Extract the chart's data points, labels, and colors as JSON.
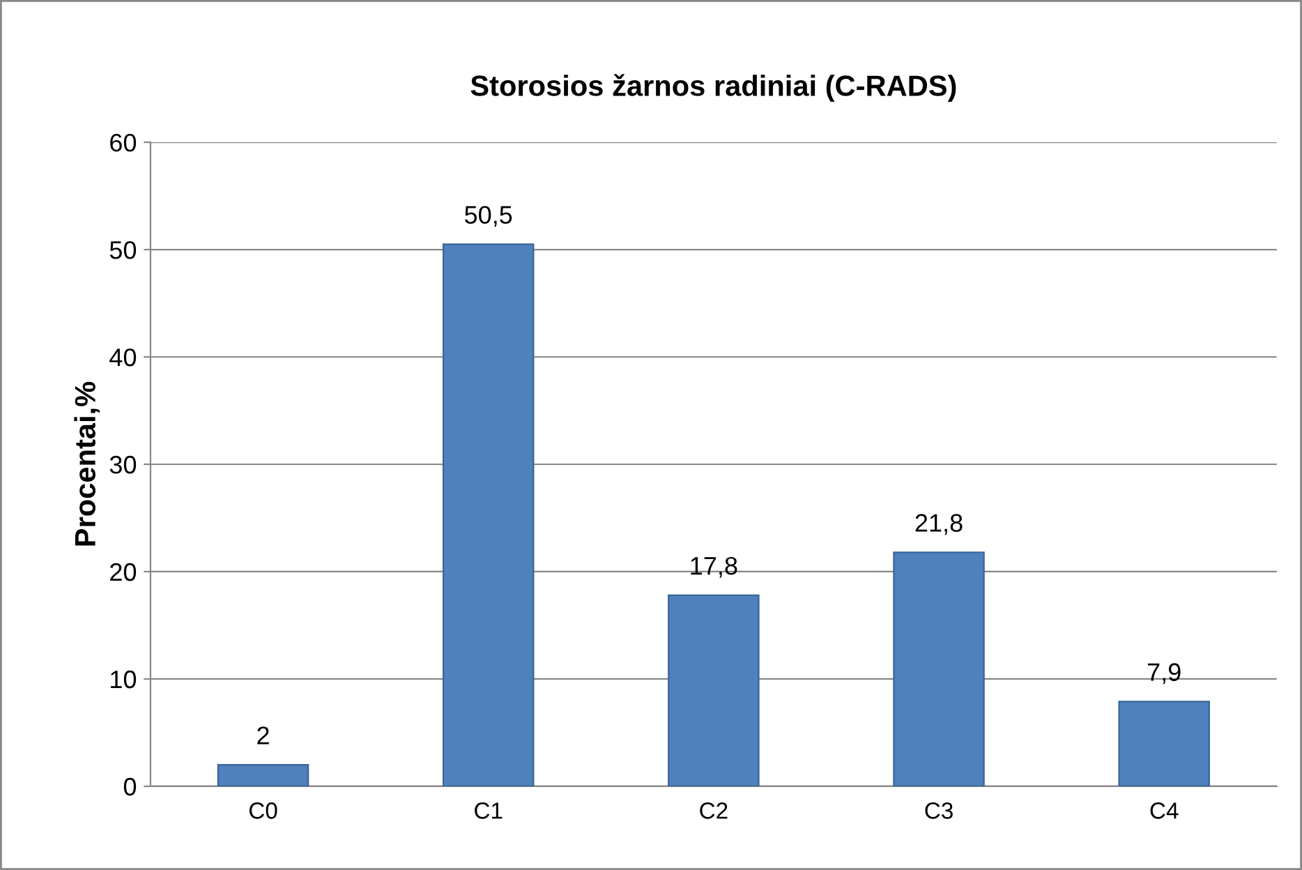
{
  "chart_data": {
    "type": "bar",
    "title": "Storosios žarnos radiniai (C-RADS)",
    "ylabel": "Procentai,%",
    "categories": [
      "C0",
      "C1",
      "C2",
      "C3",
      "C4"
    ],
    "values": [
      2,
      50.5,
      17.8,
      21.8,
      7.9
    ],
    "value_labels": [
      "2",
      "50,5",
      "17,8",
      "21,8",
      "7,9"
    ],
    "color": "#4f81bd",
    "ylim": [
      0,
      60
    ],
    "yticks": [
      0,
      10,
      20,
      30,
      40,
      50,
      60
    ],
    "grid": "y",
    "legend": false
  }
}
